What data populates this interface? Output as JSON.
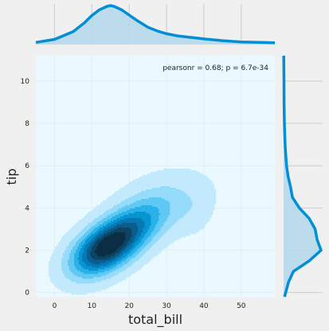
{
  "chart_data": {
    "type": "kde-joint",
    "xlabel": "total_bill",
    "ylabel": "tip",
    "annotation": "pearsonr = 0.68; p = 6.7e-34",
    "xlim": [
      -5,
      59
    ],
    "ylim": [
      -0.2,
      11.2
    ],
    "xticks": [
      0,
      10,
      20,
      30,
      40,
      50
    ],
    "yticks": [
      0,
      2,
      4,
      6,
      8,
      10
    ],
    "grid": true,
    "x_marginal": {
      "x": [
        -5,
        0,
        5,
        8,
        10,
        12,
        14,
        15,
        16,
        18,
        20,
        22,
        25,
        28,
        30,
        33,
        36,
        40,
        45,
        50,
        55,
        59
      ],
      "density": [
        0.005,
        0.012,
        0.03,
        0.05,
        0.067,
        0.08,
        0.088,
        0.09,
        0.088,
        0.08,
        0.068,
        0.056,
        0.04,
        0.03,
        0.025,
        0.02,
        0.017,
        0.013,
        0.009,
        0.006,
        0.005,
        0.004
      ]
    },
    "y_marginal": {
      "y": [
        -0.2,
        0.5,
        1,
        1.5,
        2,
        2.5,
        3,
        3.5,
        4,
        4.5,
        5,
        5.5,
        6,
        6.5,
        7,
        8,
        9,
        10,
        11.2
      ],
      "density": [
        0.01,
        0.05,
        0.1,
        0.26,
        0.38,
        0.34,
        0.32,
        0.26,
        0.16,
        0.09,
        0.07,
        0.045,
        0.03,
        0.022,
        0.015,
        0.008,
        0.005,
        0.004,
        0.002
      ]
    },
    "kde_components": [
      {
        "cx": 13,
        "cy": 2.0,
        "sx": 6.0,
        "sy": 0.85,
        "rho": 0.45,
        "weight": 1.0
      },
      {
        "cx": 20,
        "cy": 3.0,
        "sx": 6.5,
        "sy": 0.9,
        "rho": 0.5,
        "weight": 0.55
      },
      {
        "cx": 29,
        "cy": 4.2,
        "sx": 8.0,
        "sy": 1.0,
        "rho": 0.3,
        "weight": 0.2
      },
      {
        "cx": 38,
        "cy": 3.8,
        "sx": 3.0,
        "sy": 0.8,
        "rho": 0.2,
        "weight": 0.06
      }
    ],
    "levels": 9,
    "colors": {
      "background": "#f0f0f0",
      "axes_bg": "#eaf8ff",
      "line": "#008fd5",
      "marginal_fill": "#b6d9ec",
      "grid": "#cbcbcb",
      "text": "#222222",
      "level_colors": [
        "#c2eafc",
        "#96dcfa",
        "#5fc9f3",
        "#2ab1e8",
        "#0694d3",
        "#0579b3",
        "#0a5d8c",
        "#0c4464",
        "#0c2e44"
      ]
    }
  }
}
